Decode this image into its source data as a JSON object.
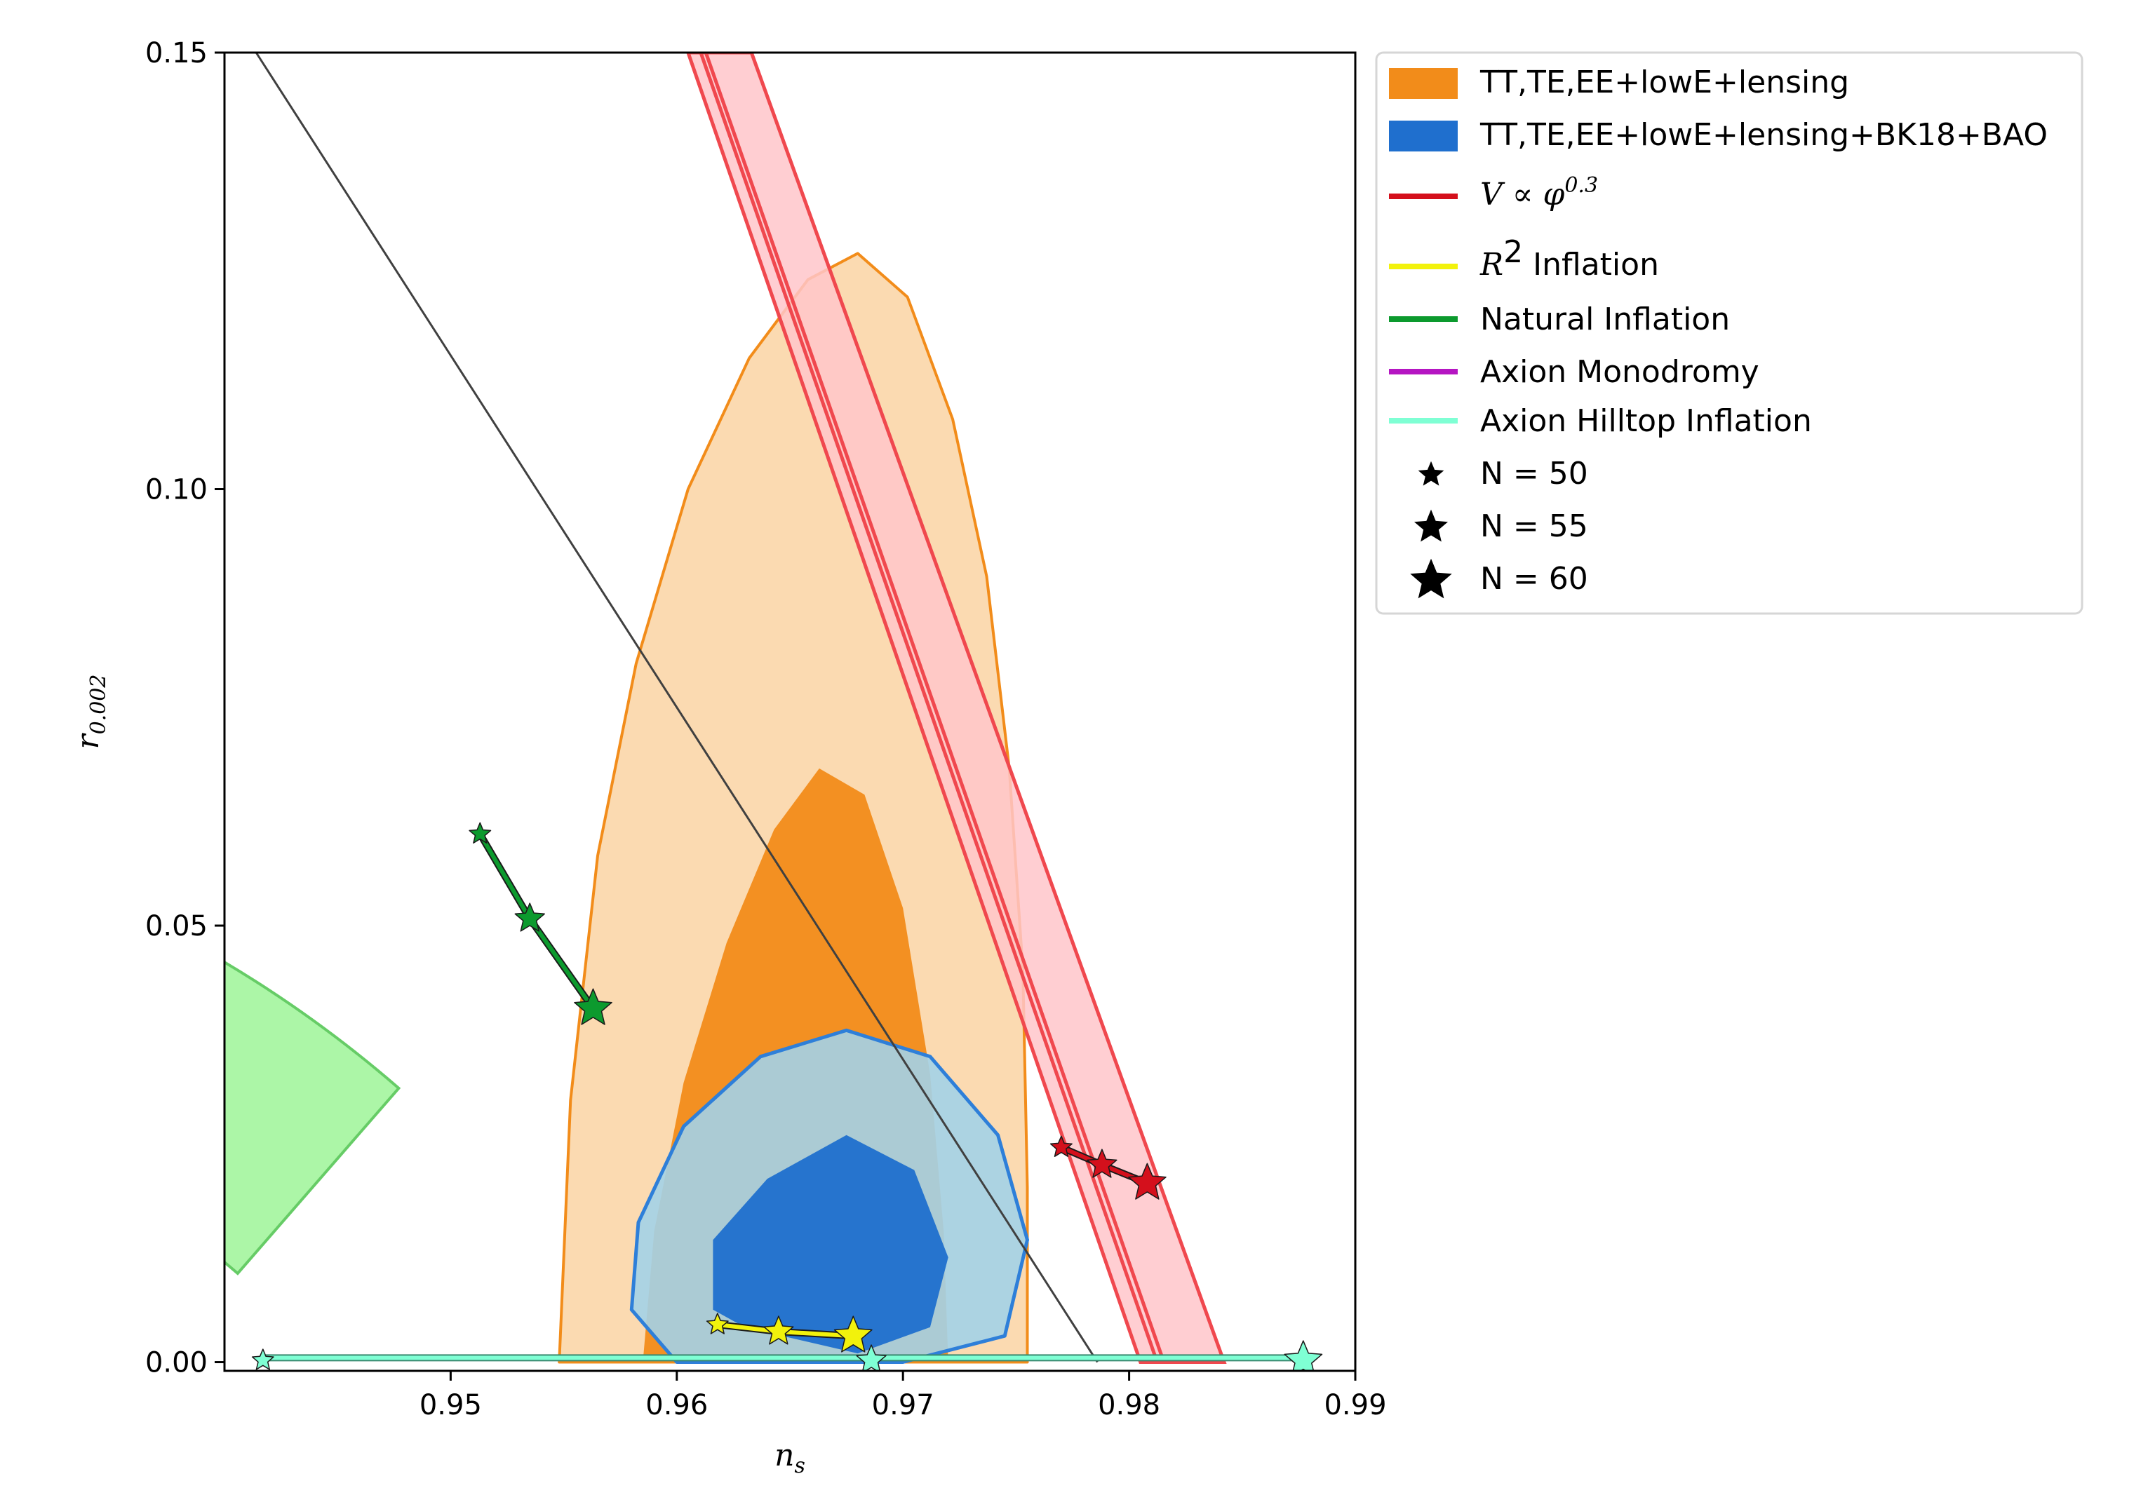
{
  "chart_data": {
    "type": "scatter",
    "title": "",
    "xlabel": "n",
    "xlabel_sub": "s",
    "ylabel": "r",
    "ylabel_sub": "0.002",
    "xlim": [
      0.94,
      0.99
    ],
    "ylim": [
      -0.001,
      0.15
    ],
    "xticks": [
      0.95,
      0.96,
      0.97,
      0.98,
      0.99
    ],
    "xtick_labels": [
      "0.95",
      "0.96",
      "0.97",
      "0.98",
      "0.99"
    ],
    "yticks": [
      0.0,
      0.05,
      0.1,
      0.15
    ],
    "ytick_labels": [
      "0.00",
      "0.05",
      "0.10",
      "0.15"
    ],
    "grid": false,
    "legend_position": "outside-top-right",
    "constraints": [
      {
        "name": "TT,TE,EE+lowE+lensing",
        "color": "#f28c1a",
        "light_fill": "#fbd6a8",
        "outer_contour": [
          [
            0.9548,
            0.0
          ],
          [
            0.9553,
            0.03
          ],
          [
            0.9565,
            0.058
          ],
          [
            0.9582,
            0.08
          ],
          [
            0.9605,
            0.1
          ],
          [
            0.9632,
            0.115
          ],
          [
            0.9658,
            0.124
          ],
          [
            0.968,
            0.127
          ],
          [
            0.9702,
            0.122
          ],
          [
            0.9722,
            0.108
          ],
          [
            0.9737,
            0.09
          ],
          [
            0.9747,
            0.068
          ],
          [
            0.9753,
            0.045
          ],
          [
            0.9755,
            0.02
          ],
          [
            0.9755,
            0.0
          ]
        ],
        "inner_contour": [
          [
            0.9585,
            0.0
          ],
          [
            0.959,
            0.015
          ],
          [
            0.9603,
            0.032
          ],
          [
            0.9622,
            0.048
          ],
          [
            0.9643,
            0.061
          ],
          [
            0.9663,
            0.068
          ],
          [
            0.9683,
            0.065
          ],
          [
            0.97,
            0.052
          ],
          [
            0.9712,
            0.033
          ],
          [
            0.9718,
            0.015
          ],
          [
            0.972,
            0.0
          ]
        ]
      },
      {
        "name": "TT,TE,EE+lowE+lensing+BK18+BAO",
        "color": "#1f6fce",
        "light_fill": "#a3d1e8",
        "outer_contour": [
          [
            0.966,
            0.0
          ],
          [
            0.96,
            0.0
          ],
          [
            0.958,
            0.006
          ],
          [
            0.9583,
            0.016
          ],
          [
            0.9603,
            0.027
          ],
          [
            0.9637,
            0.035
          ],
          [
            0.9675,
            0.038
          ],
          [
            0.9712,
            0.035
          ],
          [
            0.9742,
            0.026
          ],
          [
            0.9755,
            0.014
          ],
          [
            0.9745,
            0.003
          ],
          [
            0.97,
            0.0
          ]
        ],
        "inner_contour": [
          [
            0.963,
            0.004
          ],
          [
            0.9616,
            0.006
          ],
          [
            0.9616,
            0.014
          ],
          [
            0.964,
            0.021
          ],
          [
            0.9675,
            0.026
          ],
          [
            0.9705,
            0.022
          ],
          [
            0.972,
            0.012
          ],
          [
            0.9712,
            0.004
          ],
          [
            0.968,
            0.001
          ]
        ]
      }
    ],
    "reference_line": {
      "color": "#404040",
      "x": [
        0.9414,
        0.9786
      ],
      "y": [
        0.15,
        0.0
      ]
    },
    "models": [
      {
        "name": "V ∝ φ^0.3",
        "label_math": "V ∝ φ",
        "label_sup": "0.3",
        "color": "#d4101c",
        "band_fill": "#ffc6ca",
        "band_edge": "#f0484e",
        "band": [
          [
            0.9605,
            0.15
          ],
          [
            0.9633,
            0.15
          ],
          [
            0.9842,
            0.0
          ],
          [
            0.9805,
            0.0
          ]
        ],
        "x": [
          0.977,
          0.9788,
          0.9808
        ],
        "y": [
          0.0246,
          0.0226,
          0.0205
        ]
      },
      {
        "name": "R^2 Inflation",
        "label_math": "R",
        "label_sup": "2",
        "label_rest": " Inflation",
        "color": "#f2f20c",
        "x": [
          0.9618,
          0.9645,
          0.9678
        ],
        "y": [
          0.0043,
          0.0035,
          0.003
        ]
      },
      {
        "name": "Natural Inflation",
        "color": "#0c9a2e",
        "band_fill": "#a8f5a2",
        "band_edge": "#66cc66",
        "x": [
          0.9513,
          0.9535,
          0.9563
        ],
        "y": [
          0.0605,
          0.0508,
          0.0405
        ]
      },
      {
        "name": "Axion Monodromy",
        "color": "#b515c2",
        "x": [],
        "y": []
      },
      {
        "name": "Axion Hilltop Inflation",
        "color": "#7fffd4",
        "x": [
          0.9417,
          0.9686,
          0.9877
        ],
        "y": [
          0.0002,
          0.0002,
          0.0002
        ]
      }
    ],
    "markers": [
      {
        "label": "N = 50",
        "size": "small"
      },
      {
        "label": "N = 55",
        "size": "medium"
      },
      {
        "label": "N = 60",
        "size": "large"
      }
    ]
  }
}
